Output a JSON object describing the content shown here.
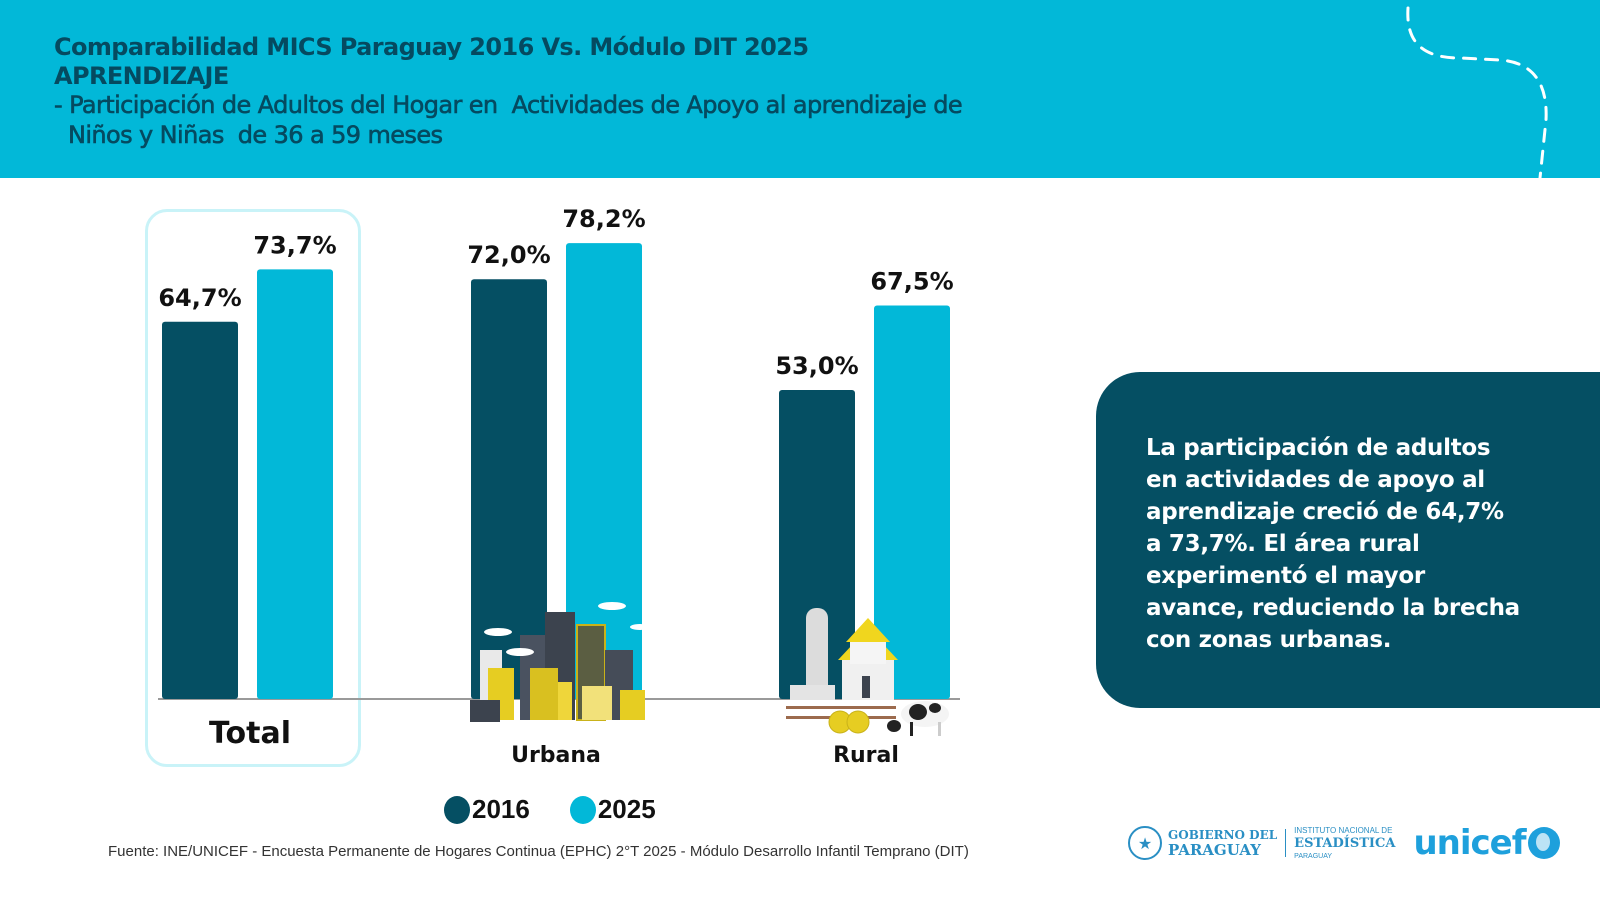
{
  "header": {
    "title_line1": "Comparabilidad MICS Paraguay 2016 Vs. Módulo DIT 2025",
    "title_line2": "APRENDIZAJE",
    "subtitle_line1": "- Participación de Adultos del Hogar en  Actividades de Apoyo al aprendizaje de",
    "subtitle_line2": "Niños y Niñas  de 36 a 59 meses"
  },
  "colors": {
    "header_bg": "#02b8d8",
    "title": "#054a60",
    "series_2016": "#054f63",
    "series_2025": "#02b8d8",
    "callout_bg": "#054f63",
    "total_frame": "#c9f3f8"
  },
  "chart_data": {
    "type": "bar",
    "title": "Participación de Adultos del Hogar en Actividades de Apoyo al aprendizaje de Niños y Niñas de 36 a 59 meses",
    "xlabel": "",
    "ylabel": "",
    "categories": [
      "Total",
      "Urbana",
      "Rural"
    ],
    "series": [
      {
        "name": "2016",
        "values": [
          64.7,
          72.0,
          53.0
        ],
        "labels": [
          "64,7%",
          "72,0%",
          "53,0%"
        ]
      },
      {
        "name": "2025",
        "values": [
          73.7,
          78.2,
          67.5
        ],
        "labels": [
          "73,7%",
          "78,2%",
          "67,5%"
        ]
      }
    ],
    "ylim": [
      0,
      100
    ],
    "grid": false,
    "legend": "bottom",
    "unit": "%"
  },
  "legend": [
    {
      "label": "2016"
    },
    {
      "label": "2025"
    }
  ],
  "illustrations": {
    "urbana": "city-skyline-illustration",
    "rural": "farm-illustration"
  },
  "callout": {
    "text": "La participación de adultos en actividades de apoyo al aprendizaje creció de 64,7% a 73,7%. El área rural experimentó el mayor avance, reduciendo la brecha con zonas urbanas."
  },
  "footer": {
    "source": "Fuente: INE/UNICEF - Encuesta Permanente de Hogares Continua (EPHC) 2°T 2025 - Módulo Desarrollo Infantil Temprano (DIT)",
    "logos": {
      "gobierno_line1": "GOBIERNO DEL",
      "gobierno_line2": "PARAGUAY",
      "ine_line1": "INSTITUTO NACIONAL DE",
      "ine_line2": "ESTADÍSTICA",
      "ine_line3": "PARAGUAY",
      "unicef": "unicef"
    }
  }
}
